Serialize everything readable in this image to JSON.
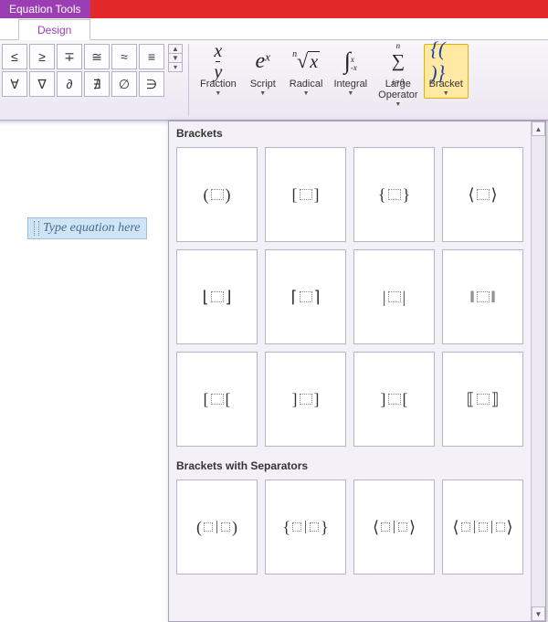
{
  "colors": {
    "titlebar_bg": "#e22828",
    "contextual_tab_bg": "#9b3db3",
    "ribbon_bg_top": "#f8f6fa",
    "ribbon_bg_bottom": "#ece7f2",
    "dropdown_bg": "#f3f1f7",
    "tile_border": "#b9b2c8",
    "highlight_bg": "#ffe9a3",
    "highlight_border": "#e0b000",
    "equation_bg": "#cfe5f6",
    "equation_border": "#9bbfdc"
  },
  "contextual_tab": "Equation Tools",
  "ribbon_tab": "Design",
  "symbols": {
    "row1": [
      "≤",
      "≥",
      "∓",
      "≅",
      "≈",
      "≡"
    ],
    "row2": [
      "∀",
      "∇",
      "∂",
      "∄",
      "∅",
      "∋"
    ]
  },
  "structures": [
    {
      "key": "fraction",
      "label": "Fraction"
    },
    {
      "key": "script",
      "label": "Script"
    },
    {
      "key": "radical",
      "label": "Radical"
    },
    {
      "key": "integral",
      "label": "Integral"
    },
    {
      "key": "largeop",
      "label": "Large\nOperator"
    },
    {
      "key": "bracket",
      "label": "Bracket",
      "selected": true
    }
  ],
  "equation_placeholder": "Type equation here",
  "dropdown": {
    "sections": [
      {
        "title": "Brackets",
        "tiles": [
          {
            "left": "(",
            "right": ")",
            "boxes": 1
          },
          {
            "left": "[",
            "right": "]",
            "boxes": 1
          },
          {
            "left": "{",
            "right": "}",
            "boxes": 1
          },
          {
            "left": "⟨",
            "right": "⟩",
            "boxes": 1
          },
          {
            "left": "⌊",
            "right": "⌋",
            "boxes": 1
          },
          {
            "left": "⌈",
            "right": "⌉",
            "boxes": 1
          },
          {
            "left": "|",
            "right": "|",
            "boxes": 1
          },
          {
            "left": "‖",
            "right": "‖",
            "boxes": 1
          },
          {
            "left": "[",
            "right": "[",
            "boxes": 1
          },
          {
            "left": "]",
            "right": "]",
            "boxes": 1
          },
          {
            "left": "]",
            "right": "[",
            "boxes": 1
          },
          {
            "left": "⟦",
            "right": "⟧",
            "boxes": 1
          }
        ]
      },
      {
        "title": "Brackets with Separators",
        "tiles": [
          {
            "left": "(",
            "right": ")",
            "boxes": 2,
            "sep": "|"
          },
          {
            "left": "{",
            "right": "}",
            "boxes": 2,
            "sep": "|"
          },
          {
            "left": "⟨",
            "right": "⟩",
            "boxes": 2,
            "sep": "|"
          },
          {
            "left": "⟨",
            "right": "⟩",
            "boxes": 3,
            "sep": "|"
          }
        ]
      }
    ]
  }
}
